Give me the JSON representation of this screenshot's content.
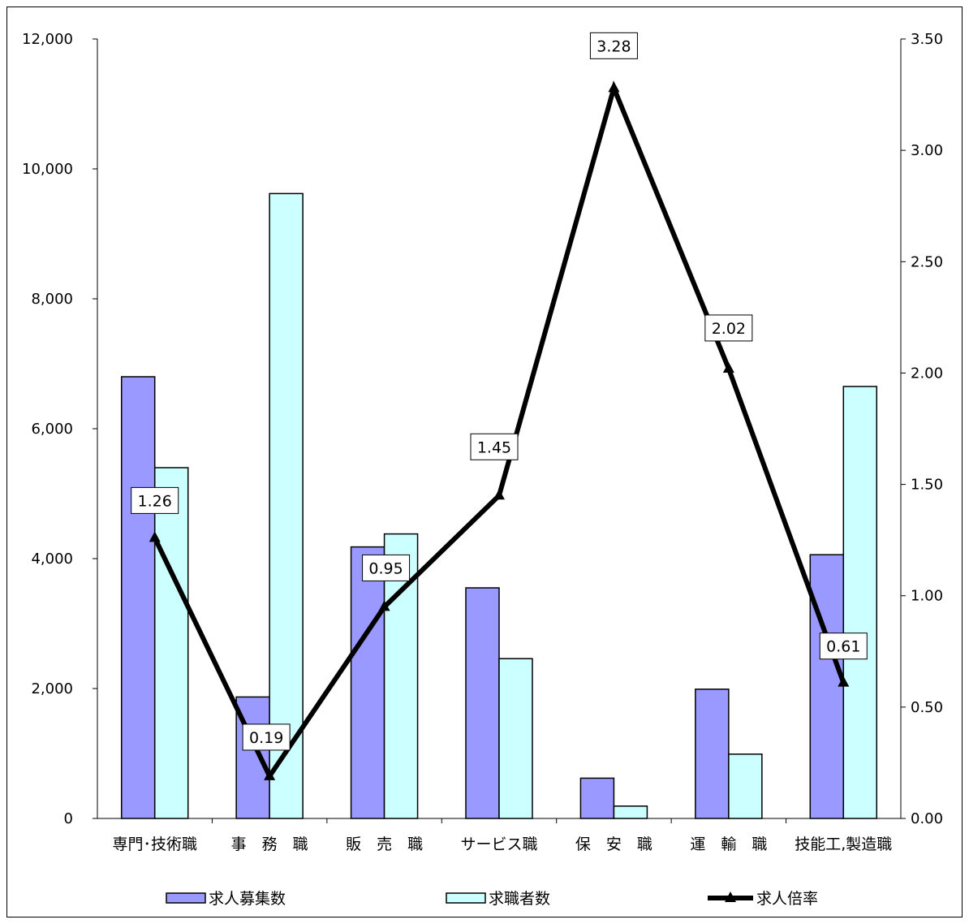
{
  "chart_data": {
    "type": "bar",
    "categories": [
      "専門･技術職",
      "事　務　職",
      "販　売　職",
      "サービス職",
      "保　安　職",
      "運　輸　職",
      "技能工,製造職"
    ],
    "series": [
      {
        "name": "求人募集数",
        "type": "bar",
        "axis": "left",
        "color": "#9999ff",
        "values": [
          6800,
          1870,
          4180,
          3550,
          620,
          1990,
          4060
        ]
      },
      {
        "name": "求職者数",
        "type": "bar",
        "axis": "left",
        "color": "#ccffff",
        "values": [
          5400,
          9620,
          4380,
          2460,
          190,
          990,
          6650
        ]
      },
      {
        "name": "求人倍率",
        "type": "line",
        "axis": "right",
        "color": "#000000",
        "values": [
          1.26,
          0.19,
          0.95,
          1.45,
          3.28,
          2.02,
          0.61
        ],
        "labels": [
          "1.26",
          "0.19",
          "0.95",
          "1.45",
          "3.28",
          "2.02",
          "0.61"
        ]
      }
    ],
    "y_left": {
      "ylim": [
        0,
        12000
      ],
      "ticks": [
        "0",
        "2,000",
        "4,000",
        "6,000",
        "8,000",
        "10,000",
        "12,000"
      ]
    },
    "y_right": {
      "ylim": [
        0,
        3.5
      ],
      "ticks": [
        "0.00",
        "0.50",
        "1.00",
        "1.50",
        "2.00",
        "2.50",
        "3.00",
        "3.50"
      ]
    },
    "legend": "bottom",
    "grid": false
  }
}
